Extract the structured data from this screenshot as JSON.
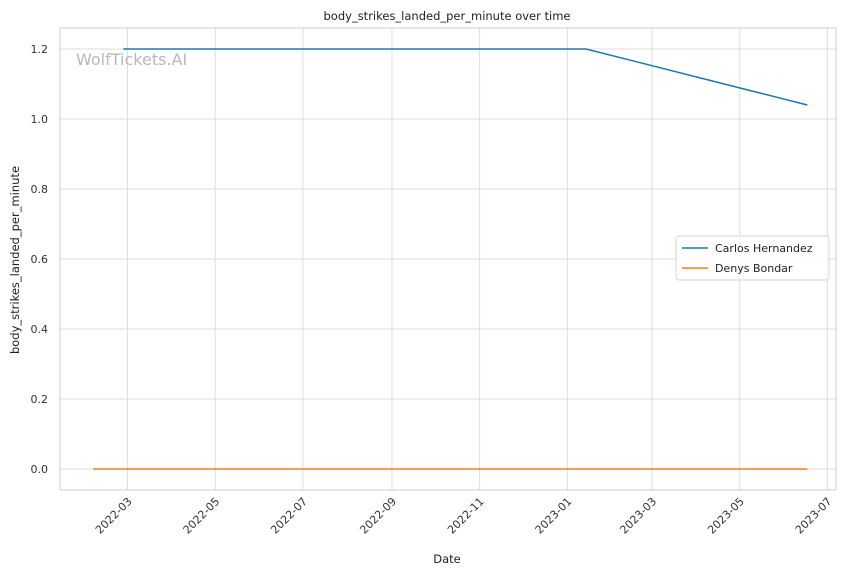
{
  "chart_data": {
    "type": "line",
    "title": "body_strikes_landed_per_minute over time",
    "xlabel": "Date",
    "ylabel": "body_strikes_landed_per_minute",
    "x_axis_type": "date",
    "xlim": [
      "2022-01-13",
      "2023-07-07"
    ],
    "ylim": [
      -0.06,
      1.26
    ],
    "x_ticks": [
      "2022-03",
      "2022-05",
      "2022-07",
      "2022-09",
      "2022-11",
      "2023-01",
      "2023-03",
      "2023-05",
      "2023-07"
    ],
    "y_ticks": [
      "0.0",
      "0.2",
      "0.4",
      "0.6",
      "0.8",
      "1.0",
      "1.2"
    ],
    "grid": true,
    "legend_position": "center-right",
    "series": [
      {
        "name": "Carlos Hernandez",
        "color": "#1f77b4",
        "points": [
          {
            "x": "2022-02-26",
            "y": 1.2
          },
          {
            "x": "2023-01-14",
            "y": 1.2
          },
          {
            "x": "2023-06-17",
            "y": 1.04
          }
        ]
      },
      {
        "name": "Denys Bondar",
        "color": "#ff7f0e",
        "points": [
          {
            "x": "2022-02-05",
            "y": 0.0
          },
          {
            "x": "2023-06-17",
            "y": 0.0
          }
        ]
      }
    ],
    "watermark": "WolfTickets.AI"
  }
}
